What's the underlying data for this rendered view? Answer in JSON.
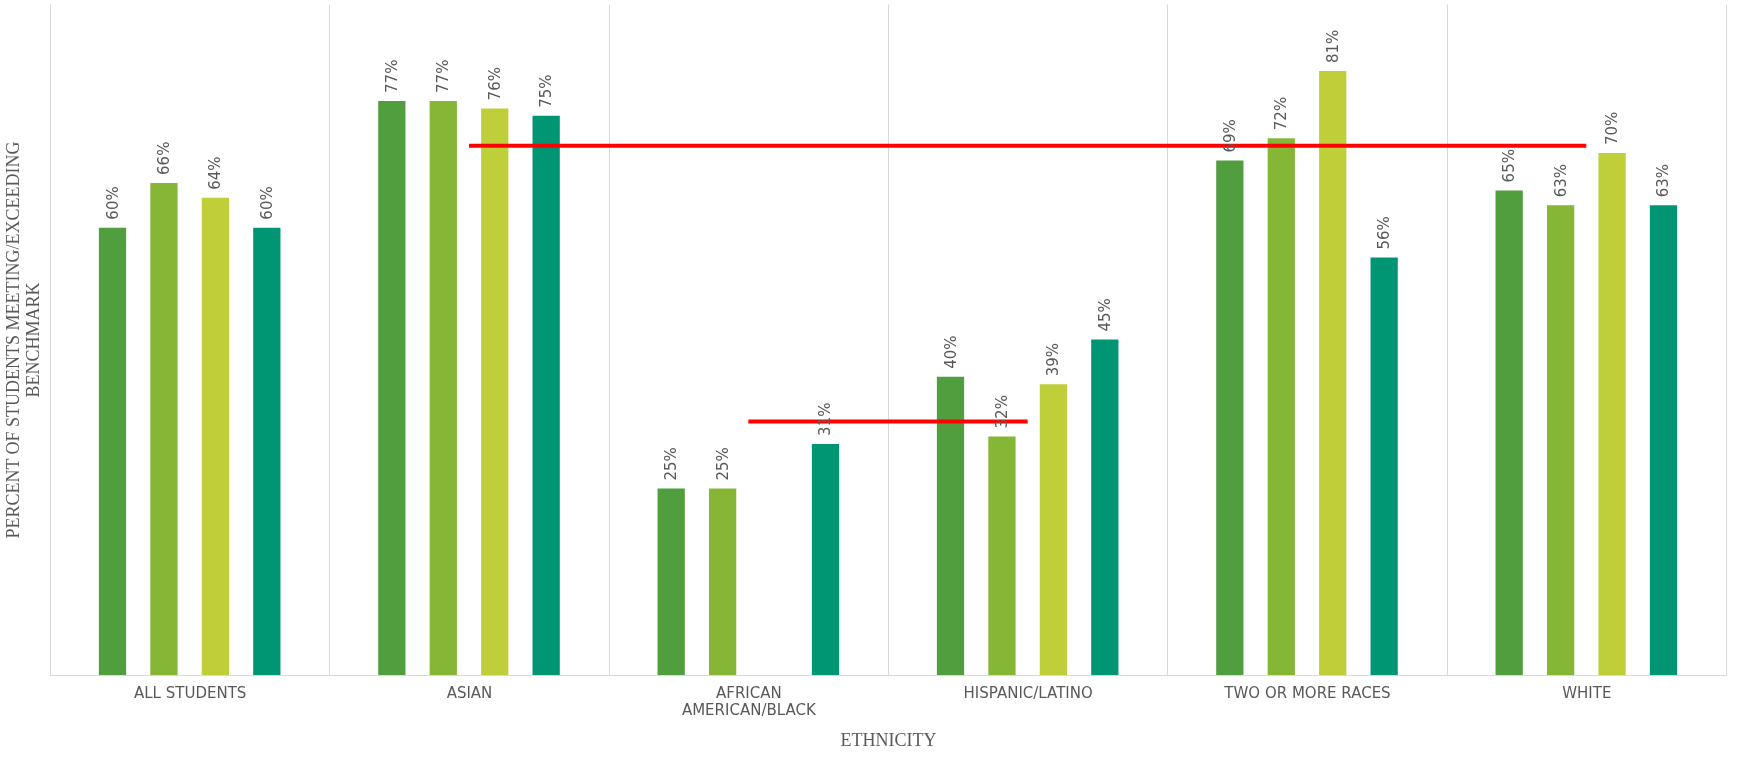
{
  "chart_data": {
    "type": "bar",
    "xlabel": "ETHNICITY",
    "ylabel": "PERCENT OF STUDENTS MEETING/EXCEEDING BENCHMARK",
    "categories": [
      "ALL STUDENTS",
      "ASIAN",
      "AFRICAN AMERICAN/BLACK",
      "HISPANIC/LATINO",
      "TWO OR MORE RACES",
      "WHITE"
    ],
    "series": [
      {
        "color": "#519e3e",
        "values": [
          60,
          77,
          25,
          40,
          69,
          65
        ],
        "value_labels": [
          "60%",
          "77%",
          "25%",
          "40%",
          "69%",
          "65%"
        ]
      },
      {
        "color": "#86b636",
        "values": [
          66,
          77,
          25,
          32,
          72,
          63
        ],
        "value_labels": [
          "66%",
          "77%",
          "25%",
          "32%",
          "72%",
          "63%"
        ]
      },
      {
        "color": "#bfcf3a",
        "values": [
          64,
          76,
          null,
          39,
          81,
          70
        ],
        "value_labels": [
          "64%",
          "76%",
          null,
          "39%",
          "81%",
          "70%"
        ]
      },
      {
        "color": "#009573",
        "values": [
          60,
          75,
          31,
          45,
          56,
          63
        ],
        "value_labels": [
          "60%",
          "75%",
          "31%",
          "45%",
          "56%",
          "63%"
        ]
      },
      {
        "type": "line",
        "color": "#ff0000",
        "values": [
          null,
          71,
          71,
          71,
          71,
          71
        ]
      },
      {
        "type": "line",
        "color": "#ff0000",
        "values": [
          null,
          null,
          34,
          34,
          null,
          null
        ]
      }
    ],
    "ylim": [
      0,
      90
    ],
    "grid": "x",
    "tick_labels": "x"
  }
}
